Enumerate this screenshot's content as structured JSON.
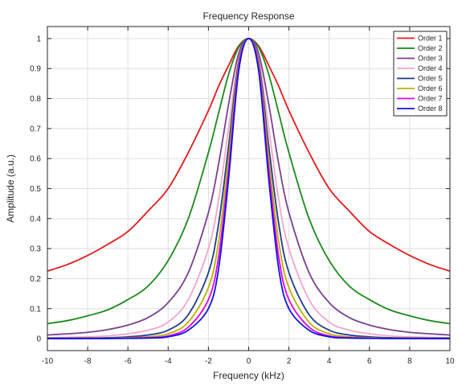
{
  "chart_data": {
    "type": "line",
    "title": "Frequency Response",
    "xlabel": "Frequency  (kHz)",
    "ylabel": "Amplitude  (a.u.)",
    "xlim": [
      -10,
      10
    ],
    "ylim": [
      -0.04,
      1.04
    ],
    "xticks": [
      -10,
      -8,
      -6,
      -4,
      -2,
      0,
      2,
      4,
      6,
      8,
      10
    ],
    "yticks": [
      0,
      0.1,
      0.2,
      0.3,
      0.4,
      0.5,
      0.6,
      0.7,
      0.8,
      0.9,
      1
    ],
    "grid": true,
    "legend_position": "top-right",
    "x": [
      -10,
      -9,
      -8,
      -7,
      -6,
      -5,
      -4,
      -3,
      -2,
      -1.5,
      -1,
      -0.5,
      0,
      0.5,
      1,
      1.5,
      2,
      3,
      4,
      5,
      6,
      7,
      8,
      9,
      10
    ],
    "series": [
      {
        "name": "Order 1",
        "color": "#e41a1c",
        "values": [
          0.225,
          0.247,
          0.277,
          0.314,
          0.357,
          0.425,
          0.5,
          0.62,
          0.76,
          0.84,
          0.91,
          0.975,
          1,
          0.975,
          0.91,
          0.84,
          0.76,
          0.62,
          0.5,
          0.425,
          0.357,
          0.314,
          0.277,
          0.247,
          0.225
        ]
      },
      {
        "name": "Order 2",
        "color": "#1a8a1a",
        "values": [
          0.05,
          0.06,
          0.076,
          0.096,
          0.13,
          0.175,
          0.26,
          0.4,
          0.62,
          0.75,
          0.88,
          0.97,
          1,
          0.97,
          0.88,
          0.75,
          0.62,
          0.4,
          0.26,
          0.175,
          0.13,
          0.096,
          0.076,
          0.06,
          0.05
        ]
      },
      {
        "name": "Order 3",
        "color": "#7b3f8f",
        "values": [
          0.012,
          0.016,
          0.021,
          0.03,
          0.045,
          0.07,
          0.12,
          0.22,
          0.42,
          0.58,
          0.78,
          0.95,
          1,
          0.95,
          0.78,
          0.58,
          0.42,
          0.22,
          0.12,
          0.07,
          0.045,
          0.03,
          0.021,
          0.016,
          0.012
        ]
      },
      {
        "name": "Order 4",
        "color": "#f2a6c8",
        "values": [
          0.003,
          0.004,
          0.006,
          0.009,
          0.016,
          0.028,
          0.055,
          0.13,
          0.3,
          0.46,
          0.7,
          0.93,
          1,
          0.93,
          0.7,
          0.46,
          0.3,
          0.13,
          0.055,
          0.028,
          0.016,
          0.009,
          0.006,
          0.004,
          0.003
        ]
      },
      {
        "name": "Order 5",
        "color": "#1f3a8a",
        "values": [
          0.001,
          0.0015,
          0.002,
          0.003,
          0.006,
          0.012,
          0.028,
          0.08,
          0.22,
          0.38,
          0.64,
          0.92,
          1,
          0.92,
          0.64,
          0.38,
          0.22,
          0.08,
          0.028,
          0.012,
          0.006,
          0.003,
          0.002,
          0.0015,
          0.001
        ]
      },
      {
        "name": "Order 6",
        "color": "#b8b000",
        "values": [
          0.0005,
          0.0007,
          0.001,
          0.0015,
          0.003,
          0.006,
          0.016,
          0.055,
          0.17,
          0.32,
          0.6,
          0.91,
          1,
          0.91,
          0.6,
          0.32,
          0.17,
          0.055,
          0.016,
          0.006,
          0.003,
          0.0015,
          0.001,
          0.0007,
          0.0005
        ]
      },
      {
        "name": "Order 7",
        "color": "#e000e0",
        "values": [
          0.0002,
          0.0003,
          0.0005,
          0.0008,
          0.0015,
          0.003,
          0.009,
          0.038,
          0.13,
          0.27,
          0.56,
          0.9,
          1,
          0.9,
          0.56,
          0.27,
          0.13,
          0.038,
          0.009,
          0.003,
          0.0015,
          0.0008,
          0.0005,
          0.0003,
          0.0002
        ]
      },
      {
        "name": "Order 8",
        "color": "#1010e8",
        "values": [
          0.0001,
          0.0001,
          0.0002,
          0.0004,
          0.0008,
          0.0018,
          0.006,
          0.028,
          0.1,
          0.23,
          0.53,
          0.89,
          1,
          0.89,
          0.53,
          0.23,
          0.1,
          0.028,
          0.006,
          0.0018,
          0.0008,
          0.0004,
          0.0002,
          0.0001,
          0.0001
        ]
      }
    ]
  }
}
